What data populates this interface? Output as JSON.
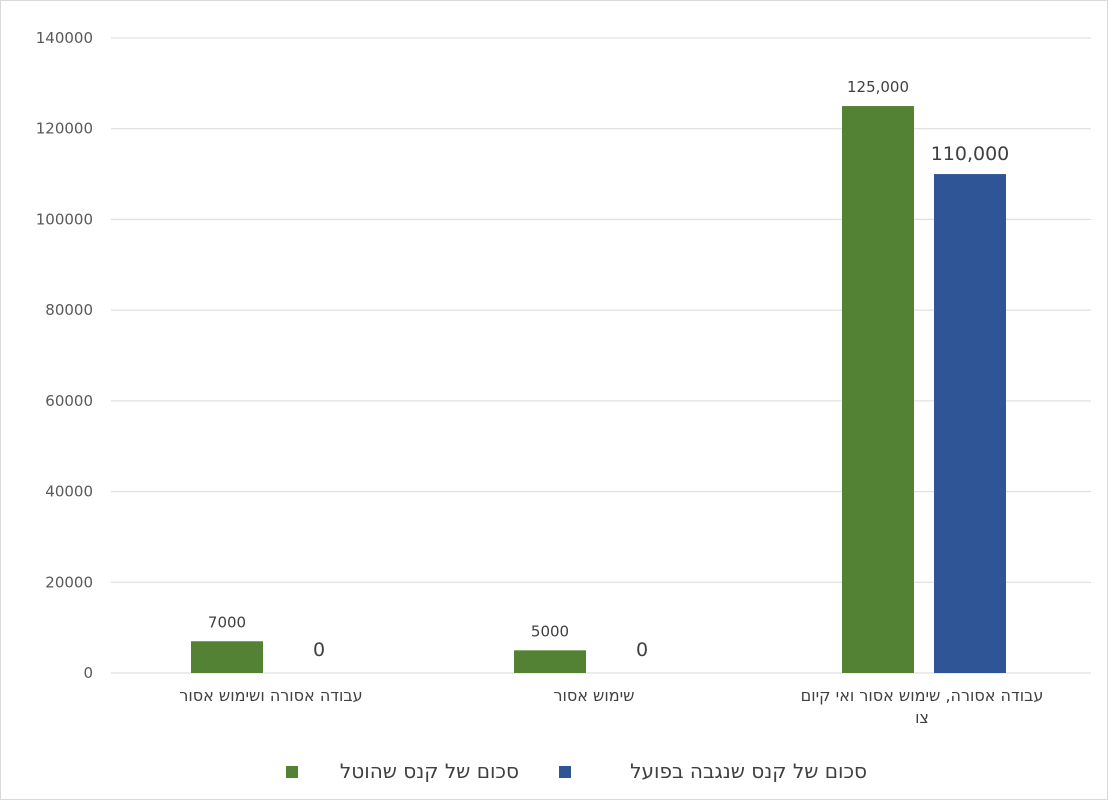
{
  "chart_data": {
    "type": "bar",
    "categories": [
      "עבודה אסורה ושימוש אסור",
      "שימוש אסור",
      "עבודה אסורה, שימוש אסור ואי קיום צו"
    ],
    "series": [
      {
        "name": "סכום של קנס שהוטל",
        "color": "#548235",
        "values": [
          7000,
          5000,
          125000
        ],
        "data_labels": [
          "7000",
          "5000",
          "125,000"
        ]
      },
      {
        "name": "סכום של קנס שנגבה בפועל",
        "color": "#2f5597",
        "values": [
          0,
          0,
          110000
        ],
        "data_labels": [
          "0",
          "0",
          "110,000"
        ]
      }
    ],
    "y_ticks": [
      "0",
      "20000",
      "40000",
      "60000",
      "80000",
      "100000",
      "120000",
      "140000"
    ],
    "ylim": [
      0,
      140000
    ],
    "grid": true,
    "legend_position": "bottom",
    "title": "",
    "xlabel": "",
    "ylabel": ""
  }
}
